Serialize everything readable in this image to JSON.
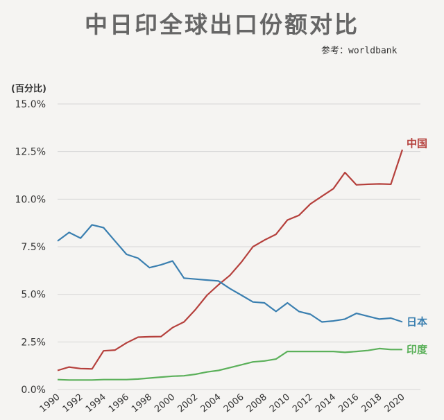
{
  "chart_data": {
    "type": "line",
    "title": "中日印全球出口份额对比",
    "source": "参考：worldbank",
    "ylabel": "(百分比)",
    "ylim": [
      0,
      15
    ],
    "yticks": [
      "0.0%",
      "2.5%",
      "5.0%",
      "7.5%",
      "10.0%",
      "12.5%",
      "15.0%"
    ],
    "ytick_values": [
      0,
      2.5,
      5,
      7.5,
      10,
      12.5,
      15
    ],
    "xlim": [
      1990,
      2020
    ],
    "xticks": [
      "1990",
      "1992",
      "1994",
      "1996",
      "1998",
      "2000",
      "2002",
      "2004",
      "2006",
      "2008",
      "2010",
      "2012",
      "2014",
      "2016",
      "2018",
      "2020"
    ],
    "x": [
      1990,
      1991,
      1992,
      1993,
      1994,
      1995,
      1996,
      1997,
      1998,
      1999,
      2000,
      2001,
      2002,
      2003,
      2004,
      2005,
      2006,
      2007,
      2008,
      2009,
      2010,
      2011,
      2012,
      2013,
      2014,
      2015,
      2016,
      2017,
      2018,
      2019,
      2020
    ],
    "grid": true,
    "series": [
      {
        "name": "中国",
        "color": "#b5403c",
        "values": [
          1.0,
          1.18,
          1.1,
          1.08,
          2.03,
          2.07,
          2.45,
          2.75,
          2.77,
          2.78,
          3.25,
          3.55,
          4.2,
          4.95,
          5.5,
          6.0,
          6.7,
          7.5,
          7.85,
          8.15,
          8.9,
          9.15,
          9.75,
          10.15,
          10.55,
          11.4,
          10.75,
          10.78,
          10.8,
          10.78,
          12.6
        ]
      },
      {
        "name": "日本",
        "color": "#3a7fb0",
        "values": [
          7.8,
          8.25,
          7.95,
          8.65,
          8.5,
          7.8,
          7.1,
          6.9,
          6.4,
          6.55,
          6.75,
          5.85,
          5.8,
          5.75,
          5.7,
          5.3,
          4.95,
          4.6,
          4.55,
          4.1,
          4.55,
          4.1,
          3.95,
          3.55,
          3.6,
          3.7,
          4.0,
          3.85,
          3.7,
          3.75,
          3.55
        ]
      },
      {
        "name": "印度",
        "color": "#5bb05a",
        "values": [
          0.52,
          0.5,
          0.5,
          0.5,
          0.52,
          0.52,
          0.52,
          0.55,
          0.6,
          0.65,
          0.7,
          0.72,
          0.8,
          0.92,
          1.0,
          1.15,
          1.3,
          1.45,
          1.5,
          1.6,
          2.0,
          2.0,
          2.0,
          2.0,
          2.0,
          1.95,
          2.0,
          2.05,
          2.15,
          2.1,
          2.1
        ]
      }
    ]
  }
}
